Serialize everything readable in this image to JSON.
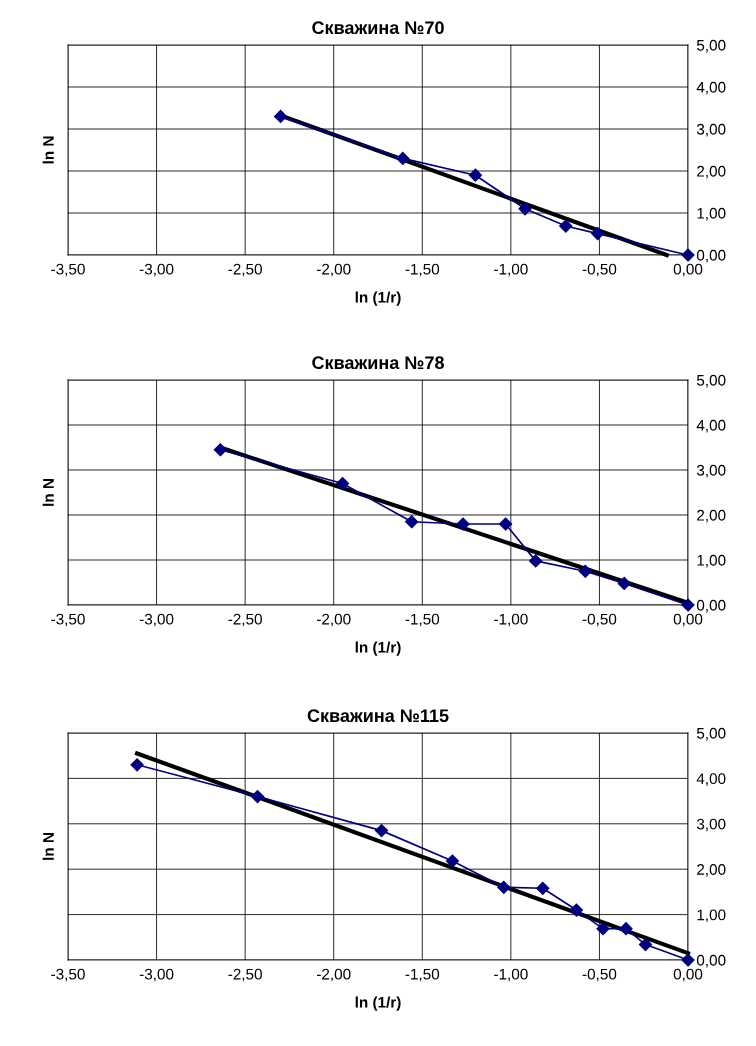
{
  "chart_data": [
    {
      "type": "line",
      "title": "Скважина №70",
      "xlabel": "ln (1/r)",
      "ylabel": "ln N",
      "xlim": [
        -3.5,
        0
      ],
      "ylim": [
        0,
        5
      ],
      "grid": true,
      "legend": false,
      "xticks": [
        {
          "value": -3.5,
          "label": "-3,50"
        },
        {
          "value": -3.0,
          "label": "-3,00"
        },
        {
          "value": -2.5,
          "label": "-2,50"
        },
        {
          "value": -2.0,
          "label": "-2,00"
        },
        {
          "value": -1.5,
          "label": "-1,50"
        },
        {
          "value": -1.0,
          "label": "-1,00"
        },
        {
          "value": -0.5,
          "label": "-0,50"
        },
        {
          "value": 0,
          "label": "0,00"
        }
      ],
      "yticks": [
        {
          "value": 0,
          "label": "0,00"
        },
        {
          "value": 1,
          "label": "1,00"
        },
        {
          "value": 2,
          "label": "2,00"
        },
        {
          "value": 3,
          "label": "3,00"
        },
        {
          "value": 4,
          "label": "4,00"
        },
        {
          "value": 5,
          "label": "5,00"
        }
      ],
      "series": [
        {
          "color": "#000080",
          "marker": "diamond",
          "x": [
            -2.3,
            -1.61,
            -1.2,
            -0.92,
            -0.69,
            -0.51,
            0.0
          ],
          "values": [
            3.3,
            2.3,
            1.9,
            1.1,
            0.69,
            0.51,
            0.0
          ]
        },
        {
          "color": "#000000",
          "marker": "none",
          "x": [
            -2.3,
            -0.12
          ],
          "values": [
            3.32,
            0.0
          ]
        }
      ]
    },
    {
      "type": "line",
      "title": "Скважина №78",
      "xlabel": "ln (1/r)",
      "ylabel": "ln N",
      "xlim": [
        -3.5,
        0
      ],
      "ylim": [
        0,
        5
      ],
      "grid": true,
      "legend": false,
      "xticks": [
        {
          "value": -3.5,
          "label": "-3,50"
        },
        {
          "value": -3.0,
          "label": "-3,00"
        },
        {
          "value": -2.5,
          "label": "-2,50"
        },
        {
          "value": -2.0,
          "label": "-2,00"
        },
        {
          "value": -1.5,
          "label": "-1,50"
        },
        {
          "value": -1.0,
          "label": "-1,00"
        },
        {
          "value": -0.5,
          "label": "-0,50"
        },
        {
          "value": 0,
          "label": "0,00"
        }
      ],
      "yticks": [
        {
          "value": 0,
          "label": "0,00"
        },
        {
          "value": 1,
          "label": "1,00"
        },
        {
          "value": 2,
          "label": "2,00"
        },
        {
          "value": 3,
          "label": "3,00"
        },
        {
          "value": 4,
          "label": "4,00"
        },
        {
          "value": 5,
          "label": "5,00"
        }
      ],
      "series": [
        {
          "color": "#000080",
          "marker": "diamond",
          "x": [
            -2.64,
            -1.95,
            -1.56,
            -1.27,
            -1.03,
            -0.86,
            -0.58,
            -0.36,
            0.0
          ],
          "values": [
            3.45,
            2.7,
            1.85,
            1.8,
            1.8,
            0.98,
            0.75,
            0.48,
            0.0
          ]
        },
        {
          "color": "#000000",
          "marker": "none",
          "x": [
            -2.64,
            0.0
          ],
          "values": [
            3.5,
            0.05
          ]
        }
      ]
    },
    {
      "type": "line",
      "title": "Скважина №115",
      "xlabel": "ln (1/r)",
      "ylabel": "ln N",
      "xlim": [
        -3.5,
        0
      ],
      "ylim": [
        0,
        5
      ],
      "grid": true,
      "legend": false,
      "xticks": [
        {
          "value": -3.5,
          "label": "-3,50"
        },
        {
          "value": -3.0,
          "label": "-3,00"
        },
        {
          "value": -2.5,
          "label": "-2,50"
        },
        {
          "value": -2.0,
          "label": "-2,00"
        },
        {
          "value": -1.5,
          "label": "-1,50"
        },
        {
          "value": -1.0,
          "label": "-1,00"
        },
        {
          "value": -0.5,
          "label": "-0,50"
        },
        {
          "value": 0,
          "label": "0,00"
        }
      ],
      "yticks": [
        {
          "value": 0,
          "label": "0,00"
        },
        {
          "value": 1,
          "label": "1,00"
        },
        {
          "value": 2,
          "label": "2,00"
        },
        {
          "value": 3,
          "label": "3,00"
        },
        {
          "value": 4,
          "label": "4,00"
        },
        {
          "value": 5,
          "label": "5,00"
        }
      ],
      "series": [
        {
          "color": "#000080",
          "marker": "diamond",
          "x": [
            -3.11,
            -2.43,
            -1.73,
            -1.33,
            -1.04,
            -0.82,
            -0.63,
            -0.48,
            -0.35,
            -0.24,
            0.0
          ],
          "values": [
            4.3,
            3.6,
            2.85,
            2.18,
            1.6,
            1.58,
            1.1,
            0.69,
            0.69,
            0.34,
            0.0
          ]
        },
        {
          "color": "#000000",
          "marker": "none",
          "x": [
            -3.11,
            0.0
          ],
          "values": [
            4.55,
            0.15
          ]
        }
      ]
    }
  ]
}
